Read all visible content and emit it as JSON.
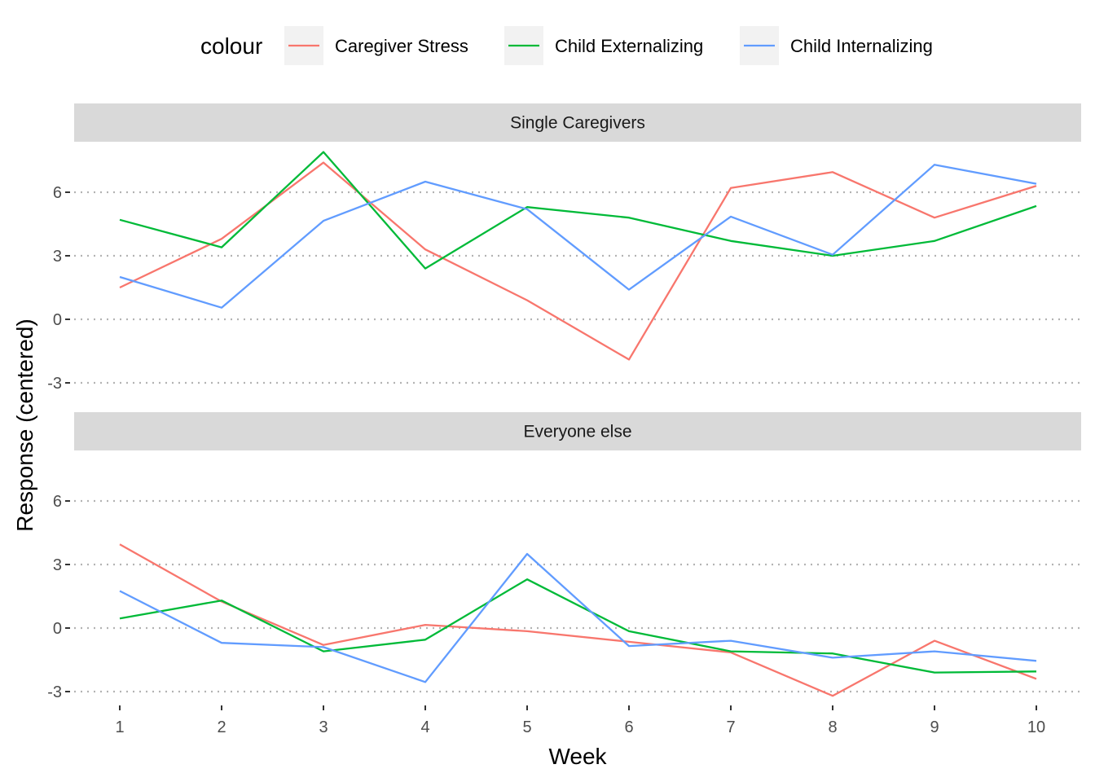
{
  "chart_data": {
    "type": "line",
    "xlabel": "Week",
    "ylabel": "Response (centered)",
    "x": [
      1,
      2,
      3,
      4,
      5,
      6,
      7,
      8,
      9,
      10
    ],
    "x_tick_labels": [
      "1",
      "2",
      "3",
      "4",
      "5",
      "6",
      "7",
      "8",
      "9",
      "10"
    ],
    "y_ticks": [
      -3,
      0,
      3,
      6
    ],
    "y_tick_labels": [
      "-3",
      "0",
      "3",
      "6"
    ],
    "ylim": [
      -3.5,
      8.2
    ],
    "grid": "horizontal dotted major lines",
    "legend": {
      "title": "colour",
      "position": "top",
      "entries": [
        {
          "label": "Caregiver Stress",
          "color": "#F8766D"
        },
        {
          "label": "Child Externalizing",
          "color": "#00BA38"
        },
        {
          "label": "Child Internalizing",
          "color": "#619CFF"
        }
      ]
    },
    "panels": [
      {
        "strip": "Single Caregivers",
        "series": [
          {
            "name": "Caregiver Stress",
            "color": "#F8766D",
            "values": [
              1.5,
              3.8,
              7.4,
              3.3,
              0.9,
              -1.9,
              6.2,
              6.95,
              4.8,
              6.3
            ]
          },
          {
            "name": "Child Externalizing",
            "color": "#00BA38",
            "values": [
              4.7,
              3.4,
              7.9,
              2.4,
              5.3,
              4.8,
              3.7,
              3.0,
              3.7,
              5.35
            ]
          },
          {
            "name": "Child Internalizing",
            "color": "#619CFF",
            "values": [
              2.0,
              0.55,
              4.65,
              6.5,
              5.2,
              1.4,
              4.85,
              3.05,
              7.3,
              6.4
            ]
          }
        ]
      },
      {
        "strip": "Everyone else",
        "series": [
          {
            "name": "Caregiver Stress",
            "color": "#F8766D",
            "values": [
              3.95,
              1.25,
              -0.8,
              0.15,
              -0.15,
              -0.65,
              -1.15,
              -3.2,
              -0.6,
              -2.4
            ]
          },
          {
            "name": "Child Externalizing",
            "color": "#00BA38",
            "values": [
              0.45,
              1.3,
              -1.1,
              -0.55,
              2.3,
              -0.15,
              -1.1,
              -1.2,
              -2.1,
              -2.05
            ]
          },
          {
            "name": "Child Internalizing",
            "color": "#619CFF",
            "values": [
              1.75,
              -0.7,
              -0.9,
              -2.55,
              3.5,
              -0.85,
              -0.6,
              -1.4,
              -1.1,
              -1.55
            ]
          }
        ]
      }
    ]
  }
}
